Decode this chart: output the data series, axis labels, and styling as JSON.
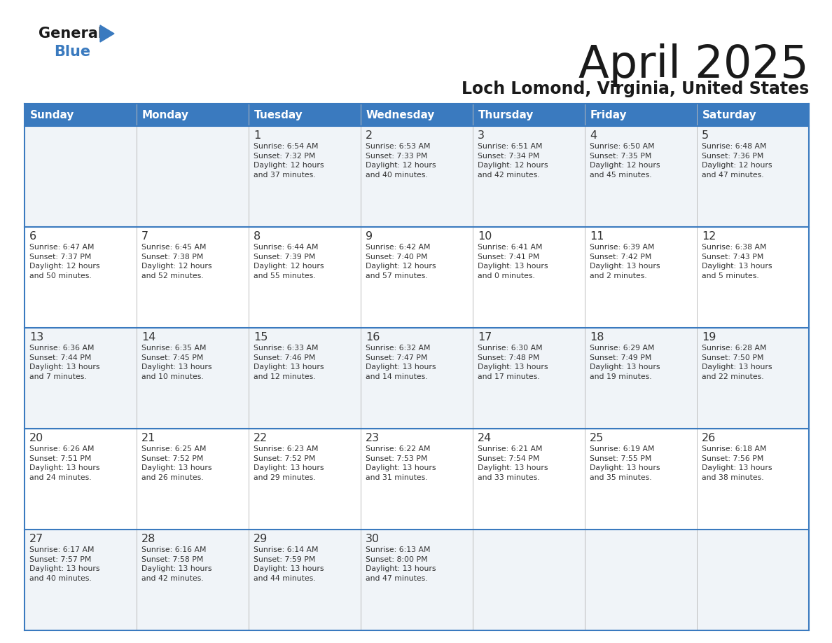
{
  "title": "April 2025",
  "subtitle": "Loch Lomond, Virginia, United States",
  "header_color": "#3a7abf",
  "header_text_color": "#ffffff",
  "row_colors": [
    "#f0f4f8",
    "#ffffff"
  ],
  "border_color": "#3a7abf",
  "cell_border_color": "#cccccc",
  "text_color": "#333333",
  "days_of_week": [
    "Sunday",
    "Monday",
    "Tuesday",
    "Wednesday",
    "Thursday",
    "Friday",
    "Saturday"
  ],
  "weeks": [
    [
      {
        "day": "",
        "info": ""
      },
      {
        "day": "",
        "info": ""
      },
      {
        "day": "1",
        "info": "Sunrise: 6:54 AM\nSunset: 7:32 PM\nDaylight: 12 hours\nand 37 minutes."
      },
      {
        "day": "2",
        "info": "Sunrise: 6:53 AM\nSunset: 7:33 PM\nDaylight: 12 hours\nand 40 minutes."
      },
      {
        "day": "3",
        "info": "Sunrise: 6:51 AM\nSunset: 7:34 PM\nDaylight: 12 hours\nand 42 minutes."
      },
      {
        "day": "4",
        "info": "Sunrise: 6:50 AM\nSunset: 7:35 PM\nDaylight: 12 hours\nand 45 minutes."
      },
      {
        "day": "5",
        "info": "Sunrise: 6:48 AM\nSunset: 7:36 PM\nDaylight: 12 hours\nand 47 minutes."
      }
    ],
    [
      {
        "day": "6",
        "info": "Sunrise: 6:47 AM\nSunset: 7:37 PM\nDaylight: 12 hours\nand 50 minutes."
      },
      {
        "day": "7",
        "info": "Sunrise: 6:45 AM\nSunset: 7:38 PM\nDaylight: 12 hours\nand 52 minutes."
      },
      {
        "day": "8",
        "info": "Sunrise: 6:44 AM\nSunset: 7:39 PM\nDaylight: 12 hours\nand 55 minutes."
      },
      {
        "day": "9",
        "info": "Sunrise: 6:42 AM\nSunset: 7:40 PM\nDaylight: 12 hours\nand 57 minutes."
      },
      {
        "day": "10",
        "info": "Sunrise: 6:41 AM\nSunset: 7:41 PM\nDaylight: 13 hours\nand 0 minutes."
      },
      {
        "day": "11",
        "info": "Sunrise: 6:39 AM\nSunset: 7:42 PM\nDaylight: 13 hours\nand 2 minutes."
      },
      {
        "day": "12",
        "info": "Sunrise: 6:38 AM\nSunset: 7:43 PM\nDaylight: 13 hours\nand 5 minutes."
      }
    ],
    [
      {
        "day": "13",
        "info": "Sunrise: 6:36 AM\nSunset: 7:44 PM\nDaylight: 13 hours\nand 7 minutes."
      },
      {
        "day": "14",
        "info": "Sunrise: 6:35 AM\nSunset: 7:45 PM\nDaylight: 13 hours\nand 10 minutes."
      },
      {
        "day": "15",
        "info": "Sunrise: 6:33 AM\nSunset: 7:46 PM\nDaylight: 13 hours\nand 12 minutes."
      },
      {
        "day": "16",
        "info": "Sunrise: 6:32 AM\nSunset: 7:47 PM\nDaylight: 13 hours\nand 14 minutes."
      },
      {
        "day": "17",
        "info": "Sunrise: 6:30 AM\nSunset: 7:48 PM\nDaylight: 13 hours\nand 17 minutes."
      },
      {
        "day": "18",
        "info": "Sunrise: 6:29 AM\nSunset: 7:49 PM\nDaylight: 13 hours\nand 19 minutes."
      },
      {
        "day": "19",
        "info": "Sunrise: 6:28 AM\nSunset: 7:50 PM\nDaylight: 13 hours\nand 22 minutes."
      }
    ],
    [
      {
        "day": "20",
        "info": "Sunrise: 6:26 AM\nSunset: 7:51 PM\nDaylight: 13 hours\nand 24 minutes."
      },
      {
        "day": "21",
        "info": "Sunrise: 6:25 AM\nSunset: 7:52 PM\nDaylight: 13 hours\nand 26 minutes."
      },
      {
        "day": "22",
        "info": "Sunrise: 6:23 AM\nSunset: 7:52 PM\nDaylight: 13 hours\nand 29 minutes."
      },
      {
        "day": "23",
        "info": "Sunrise: 6:22 AM\nSunset: 7:53 PM\nDaylight: 13 hours\nand 31 minutes."
      },
      {
        "day": "24",
        "info": "Sunrise: 6:21 AM\nSunset: 7:54 PM\nDaylight: 13 hours\nand 33 minutes."
      },
      {
        "day": "25",
        "info": "Sunrise: 6:19 AM\nSunset: 7:55 PM\nDaylight: 13 hours\nand 35 minutes."
      },
      {
        "day": "26",
        "info": "Sunrise: 6:18 AM\nSunset: 7:56 PM\nDaylight: 13 hours\nand 38 minutes."
      }
    ],
    [
      {
        "day": "27",
        "info": "Sunrise: 6:17 AM\nSunset: 7:57 PM\nDaylight: 13 hours\nand 40 minutes."
      },
      {
        "day": "28",
        "info": "Sunrise: 6:16 AM\nSunset: 7:58 PM\nDaylight: 13 hours\nand 42 minutes."
      },
      {
        "day": "29",
        "info": "Sunrise: 6:14 AM\nSunset: 7:59 PM\nDaylight: 13 hours\nand 44 minutes."
      },
      {
        "day": "30",
        "info": "Sunrise: 6:13 AM\nSunset: 8:00 PM\nDaylight: 13 hours\nand 47 minutes."
      },
      {
        "day": "",
        "info": ""
      },
      {
        "day": "",
        "info": ""
      },
      {
        "day": "",
        "info": ""
      }
    ]
  ],
  "logo_general_color": "#1a1a1a",
  "logo_blue_color": "#3a7abf",
  "logo_triangle_color": "#3a7abf"
}
